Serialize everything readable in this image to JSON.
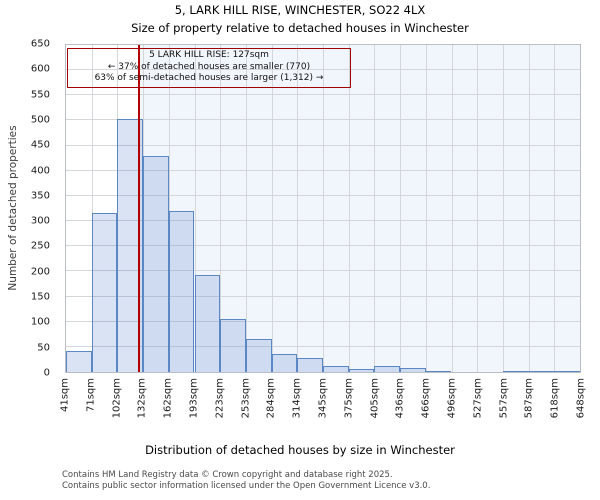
{
  "chart_data": {
    "type": "bar",
    "title": "5, LARK HILL RISE, WINCHESTER, SO22 4LX",
    "subtitle": "Size of property relative to detached houses in Winchester",
    "xlabel": "Distribution of detached houses by size in Winchester",
    "ylabel": "Number of detached properties",
    "x_tick_labels": [
      "41sqm",
      "71sqm",
      "102sqm",
      "132sqm",
      "162sqm",
      "193sqm",
      "223sqm",
      "253sqm",
      "284sqm",
      "314sqm",
      "345sqm",
      "375sqm",
      "405sqm",
      "436sqm",
      "466sqm",
      "496sqm",
      "527sqm",
      "557sqm",
      "587sqm",
      "618sqm",
      "648sqm"
    ],
    "x_range_sqm": [
      41,
      648
    ],
    "values": [
      41,
      317,
      503,
      430,
      320,
      193,
      105,
      66,
      35,
      27,
      12,
      6,
      11,
      7,
      3,
      0,
      0,
      2,
      2,
      2
    ],
    "ylim": [
      0,
      650
    ],
    "y_ticks": [
      0,
      50,
      100,
      150,
      200,
      250,
      300,
      350,
      400,
      450,
      500,
      550,
      600,
      650
    ],
    "grid": true,
    "legend": "none",
    "marker_sqm": 127,
    "marker_color": "#b40000",
    "bar_fill": "rgba(70,114,196,0.20)",
    "bar_border": "#5b87c5",
    "highlight_bg": "#f1f5fc",
    "annotation": {
      "line1": "5 LARK HILL RISE: 127sqm",
      "line2": "← 37% of detached houses are smaller (770)",
      "line3": "63% of semi-detached houses are larger (1,312) →"
    }
  },
  "footer": {
    "line1": "Contains HM Land Registry data © Crown copyright and database right 2025.",
    "line2": "Contains public sector information licensed under the Open Government Licence v3.0."
  }
}
